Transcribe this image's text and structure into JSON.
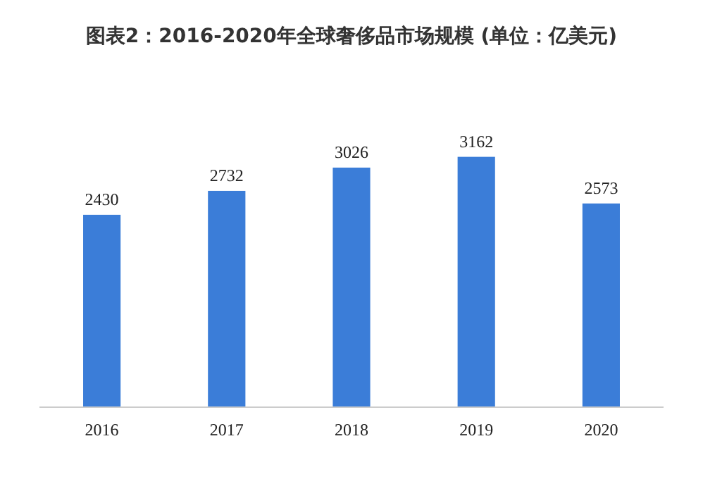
{
  "chart_data": {
    "type": "bar",
    "title": "图表2：2016-2020年全球奢侈品市场规模 (单位：亿美元)",
    "categories": [
      "2016",
      "2017",
      "2018",
      "2019",
      "2020"
    ],
    "values": [
      2430,
      2732,
      3026,
      3162,
      2573
    ],
    "color": "#3b7dd8",
    "data_labels": true
  }
}
